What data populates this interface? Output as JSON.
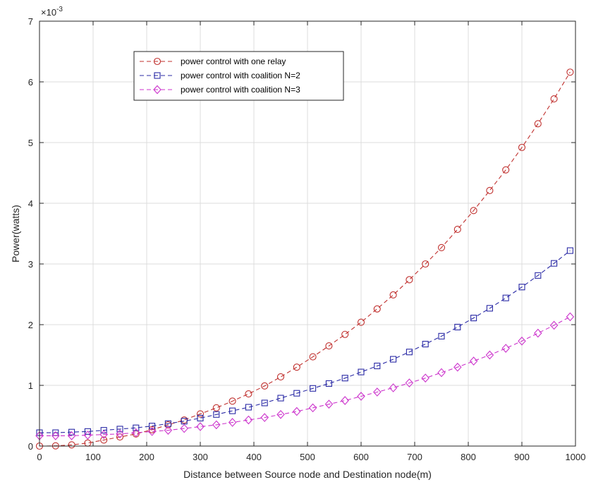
{
  "chart_data": {
    "type": "line",
    "xlabel": "Distance between Source node and Destination node(m)",
    "ylabel": "Power(watts)",
    "y_multiplier": {
      "base": "×10",
      "exponent": "-3"
    },
    "xlim": [
      0,
      1000
    ],
    "ylim": [
      0,
      7
    ],
    "xticks": [
      0,
      100,
      200,
      300,
      400,
      500,
      600,
      700,
      800,
      900,
      1000
    ],
    "yticks": [
      0,
      1,
      2,
      3,
      4,
      5,
      6,
      7
    ],
    "grid": true,
    "legend_position": "top-left",
    "x": [
      0,
      30,
      60,
      90,
      120,
      150,
      180,
      210,
      240,
      270,
      300,
      330,
      360,
      390,
      420,
      450,
      480,
      510,
      540,
      570,
      600,
      630,
      660,
      690,
      720,
      750,
      780,
      810,
      840,
      870,
      900,
      930,
      960,
      990
    ],
    "series": [
      {
        "name": "power control with one relay",
        "color": "#c0302e",
        "marker": "circle",
        "values": [
          0.0,
          0.004,
          0.02,
          0.05,
          0.1,
          0.15,
          0.2,
          0.27,
          0.35,
          0.43,
          0.53,
          0.63,
          0.74,
          0.86,
          0.99,
          1.14,
          1.3,
          1.47,
          1.65,
          1.84,
          2.04,
          2.26,
          2.49,
          2.74,
          3.0,
          3.27,
          3.57,
          3.88,
          4.21,
          4.55,
          4.92,
          5.31,
          5.72,
          6.16
        ]
      },
      {
        "name": "power control with coalition N=2",
        "color": "#2b2ba6",
        "marker": "square",
        "values": [
          0.22,
          0.22,
          0.23,
          0.24,
          0.26,
          0.28,
          0.3,
          0.33,
          0.37,
          0.41,
          0.46,
          0.52,
          0.58,
          0.64,
          0.71,
          0.79,
          0.87,
          0.95,
          1.03,
          1.12,
          1.22,
          1.32,
          1.43,
          1.55,
          1.68,
          1.81,
          1.96,
          2.11,
          2.27,
          2.44,
          2.62,
          2.81,
          3.01,
          3.22
        ]
      },
      {
        "name": "power control with coalition N=3",
        "color": "#cc33cc",
        "marker": "diamond",
        "values": [
          0.17,
          0.17,
          0.17,
          0.18,
          0.19,
          0.2,
          0.22,
          0.24,
          0.26,
          0.29,
          0.32,
          0.35,
          0.39,
          0.43,
          0.47,
          0.52,
          0.57,
          0.63,
          0.69,
          0.75,
          0.82,
          0.89,
          0.96,
          1.04,
          1.12,
          1.21,
          1.3,
          1.4,
          1.5,
          1.61,
          1.73,
          1.86,
          1.99,
          2.13
        ]
      }
    ]
  }
}
